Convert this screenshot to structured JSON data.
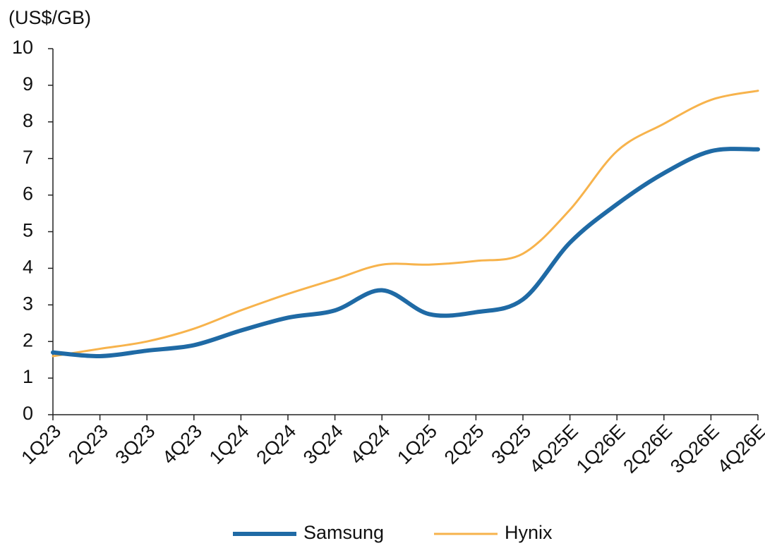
{
  "chart_data": {
    "type": "line",
    "y_label": "(US$/GB)",
    "categories": [
      "1Q23",
      "2Q23",
      "3Q23",
      "4Q23",
      "1Q24",
      "2Q24",
      "3Q24",
      "4Q24",
      "1Q25",
      "2Q25",
      "3Q25",
      "4Q25E",
      "1Q26E",
      "2Q26E",
      "3Q26E",
      "4Q26E"
    ],
    "series": [
      {
        "name": "Samsung",
        "color": "#1f6aa5",
        "values": [
          1.7,
          1.6,
          1.75,
          1.9,
          2.3,
          2.65,
          2.85,
          3.4,
          2.75,
          2.8,
          3.15,
          4.7,
          5.75,
          6.6,
          7.2,
          7.25
        ]
      },
      {
        "name": "Hynix",
        "color": "#f7b34c",
        "values": [
          1.6,
          1.8,
          2.0,
          2.35,
          2.85,
          3.3,
          3.7,
          4.1,
          4.1,
          4.2,
          4.4,
          5.6,
          7.2,
          7.95,
          8.6,
          8.85
        ]
      }
    ],
    "ylim": [
      0,
      10
    ],
    "yticks": [
      0,
      1,
      2,
      3,
      4,
      5,
      6,
      7,
      8,
      9,
      10
    ],
    "legend": "bottom",
    "smooth": true
  }
}
